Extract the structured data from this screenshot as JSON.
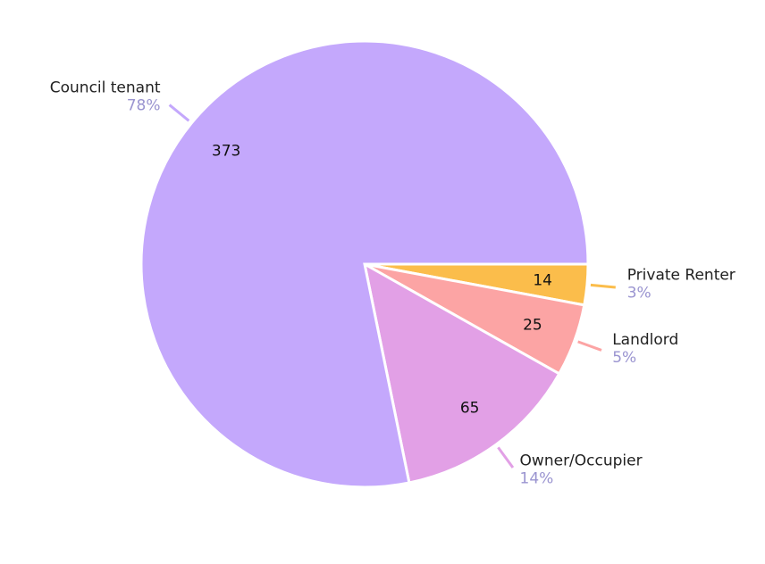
{
  "chart_data": {
    "type": "pie",
    "categories": [
      "Private Renter",
      "Landlord",
      "Owner/Occupier",
      "Council tenant"
    ],
    "values": [
      14,
      25,
      65,
      373
    ],
    "value_labels": [
      "3%",
      "5%",
      "14%",
      "78%"
    ],
    "colors": [
      "#fbbd4b",
      "#fca4a4",
      "#e2a0e6",
      "#c4a8fc"
    ]
  }
}
